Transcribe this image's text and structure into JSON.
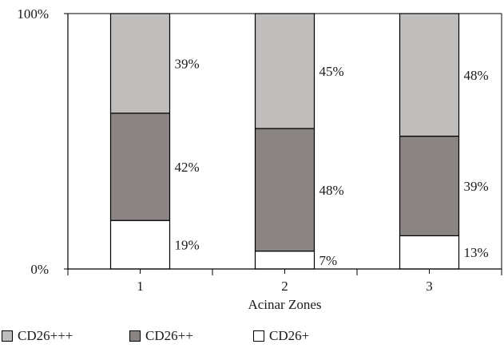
{
  "chart_data": {
    "type": "bar",
    "stacked": true,
    "categories": [
      "1",
      "2",
      "3"
    ],
    "xlabel": "Acinar Zones",
    "ylabel": "",
    "ylim": [
      0,
      100
    ],
    "y_ticks": [
      "0%",
      "100%"
    ],
    "grid": false,
    "legend_position": "bottom-left",
    "series": [
      {
        "name": "CD26+",
        "values": [
          19,
          7,
          13
        ],
        "labels": [
          "19%",
          "7%",
          "13%"
        ],
        "color": "#ffffff"
      },
      {
        "name": "CD26++",
        "values": [
          42,
          48,
          39
        ],
        "labels": [
          "42%",
          "48%",
          "39%"
        ],
        "color": "#8a8483"
      },
      {
        "name": "CD26+++",
        "values": [
          39,
          45,
          48
        ],
        "labels": [
          "39%",
          "45%",
          "48%"
        ],
        "color": "#c0bdbd"
      }
    ]
  },
  "legend": {
    "items": [
      {
        "label": "CD26+++",
        "color": "#c0bdbd"
      },
      {
        "label": "CD26++",
        "color": "#8a8483"
      },
      {
        "label": "CD26+",
        "color": "#ffffff"
      }
    ]
  }
}
